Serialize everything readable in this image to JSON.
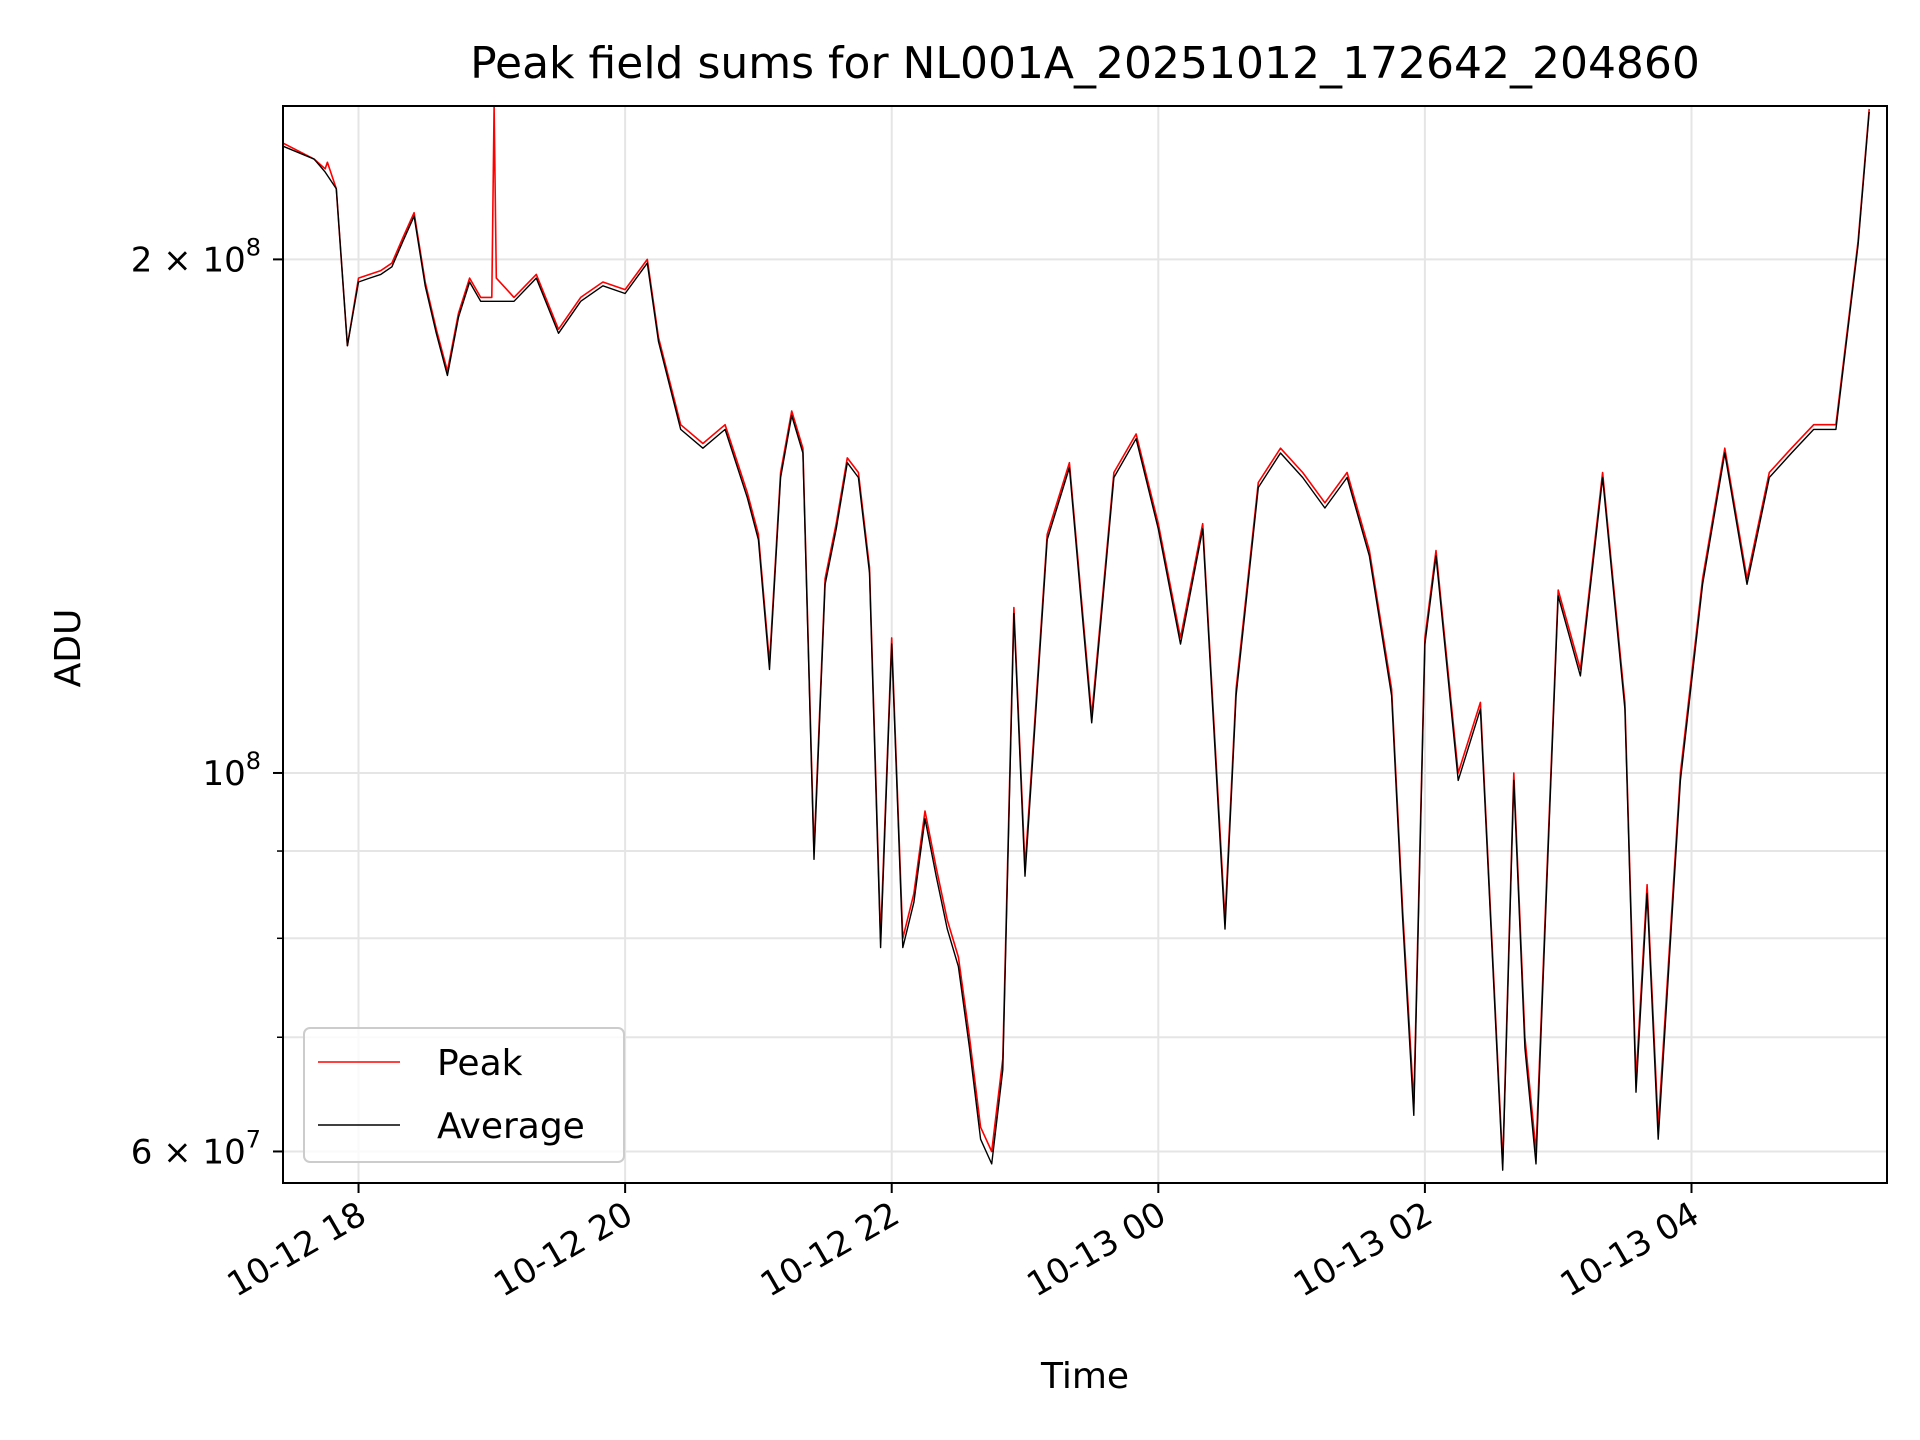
{
  "chart_data": {
    "type": "line",
    "title": "Peak field sums for NL001A_20251012_172642_204860",
    "xlabel": "Time",
    "ylabel": "ADU",
    "yscale": "log",
    "ylim": [
      57500000,
      246000000
    ],
    "xlim": [
      "2025-10-12T17:26:00",
      "2025-10-13T05:28:00"
    ],
    "grid": true,
    "legend": {
      "placement": "lower-left",
      "entries": [
        "Peak",
        "Average"
      ]
    },
    "x_ticks": [
      {
        "value": "2025-10-12T18:00:00",
        "label": "10-12 18"
      },
      {
        "value": "2025-10-12T20:00:00",
        "label": "10-12 20"
      },
      {
        "value": "2025-10-12T22:00:00",
        "label": "10-12 22"
      },
      {
        "value": "2025-10-13T00:00:00",
        "label": "10-13 00"
      },
      {
        "value": "2025-10-13T02:00:00",
        "label": "10-13 02"
      },
      {
        "value": "2025-10-13T04:00:00",
        "label": "10-13 04"
      }
    ],
    "y_major_ticks": [
      {
        "value": 60000000,
        "label": "6 × 10",
        "exp": "7"
      },
      {
        "value": 100000000,
        "label": "10",
        "exp": "8"
      },
      {
        "value": 200000000,
        "label": "2 × 10",
        "exp": "8"
      }
    ],
    "y_minor_ticks": [
      70000000,
      80000000,
      90000000
    ],
    "series": [
      {
        "name": "Peak",
        "color": "#ff0000",
        "x": [
          "2025-10-12T17:26:00",
          "2025-10-12T17:40:00",
          "2025-10-12T17:45:00",
          "2025-10-12T17:46:00",
          "2025-10-12T17:50:00",
          "2025-10-12T17:55:00",
          "2025-10-12T18:00:00",
          "2025-10-12T18:05:00",
          "2025-10-12T18:10:00",
          "2025-10-12T18:15:00",
          "2025-10-12T18:20:00",
          "2025-10-12T18:25:00",
          "2025-10-12T18:30:00",
          "2025-10-12T18:35:00",
          "2025-10-12T18:40:00",
          "2025-10-12T18:45:00",
          "2025-10-12T18:50:00",
          "2025-10-12T18:55:00",
          "2025-10-12T19:00:00",
          "2025-10-12T19:01:00",
          "2025-10-12T19:02:00",
          "2025-10-12T19:10:00",
          "2025-10-12T19:20:00",
          "2025-10-12T19:30:00",
          "2025-10-12T19:40:00",
          "2025-10-12T19:50:00",
          "2025-10-12T20:00:00",
          "2025-10-12T20:10:00",
          "2025-10-12T20:15:00",
          "2025-10-12T20:25:00",
          "2025-10-12T20:35:00",
          "2025-10-12T20:45:00",
          "2025-10-12T20:55:00",
          "2025-10-12T21:00:00",
          "2025-10-12T21:05:00",
          "2025-10-12T21:10:00",
          "2025-10-12T21:15:00",
          "2025-10-12T21:20:00",
          "2025-10-12T21:25:00",
          "2025-10-12T21:30:00",
          "2025-10-12T21:35:00",
          "2025-10-12T21:40:00",
          "2025-10-12T21:45:00",
          "2025-10-12T21:50:00",
          "2025-10-12T21:55:00",
          "2025-10-12T22:00:00",
          "2025-10-12T22:05:00",
          "2025-10-12T22:10:00",
          "2025-10-12T22:15:00",
          "2025-10-12T22:20:00",
          "2025-10-12T22:25:00",
          "2025-10-12T22:30:00",
          "2025-10-12T22:35:00",
          "2025-10-12T22:40:00",
          "2025-10-12T22:45:00",
          "2025-10-12T22:50:00",
          "2025-10-12T22:55:00",
          "2025-10-12T23:00:00",
          "2025-10-12T23:10:00",
          "2025-10-12T23:20:00",
          "2025-10-12T23:30:00",
          "2025-10-12T23:40:00",
          "2025-10-12T23:50:00",
          "2025-10-13T00:00:00",
          "2025-10-13T00:10:00",
          "2025-10-13T00:20:00",
          "2025-10-13T00:30:00",
          "2025-10-13T00:35:00",
          "2025-10-13T00:45:00",
          "2025-10-13T00:55:00",
          "2025-10-13T01:05:00",
          "2025-10-13T01:15:00",
          "2025-10-13T01:25:00",
          "2025-10-13T01:35:00",
          "2025-10-13T01:45:00",
          "2025-10-13T01:50:00",
          "2025-10-13T01:55:00",
          "2025-10-13T02:00:00",
          "2025-10-13T02:05:00",
          "2025-10-13T02:15:00",
          "2025-10-13T02:25:00",
          "2025-10-13T02:35:00",
          "2025-10-13T02:40:00",
          "2025-10-13T02:45:00",
          "2025-10-13T02:50:00",
          "2025-10-13T02:55:00",
          "2025-10-13T03:00:00",
          "2025-10-13T03:10:00",
          "2025-10-13T03:20:00",
          "2025-10-13T03:30:00",
          "2025-10-13T03:35:00",
          "2025-10-13T03:40:00",
          "2025-10-13T03:45:00",
          "2025-10-13T03:55:00",
          "2025-10-13T04:05:00",
          "2025-10-13T04:15:00",
          "2025-10-13T04:25:00",
          "2025-10-13T04:35:00",
          "2025-10-13T04:45:00",
          "2025-10-13T04:55:00",
          "2025-10-13T05:05:00",
          "2025-10-13T05:15:00",
          "2025-10-13T05:20:00"
        ],
        "values": [
          234000000,
          229000000,
          226000000,
          228000000,
          220000000,
          178000000,
          195000000,
          196000000,
          197000000,
          199000000,
          206000000,
          213000000,
          194000000,
          182000000,
          172000000,
          186000000,
          195000000,
          190000000,
          190000000,
          246000000,
          195000000,
          190000000,
          196000000,
          182000000,
          190000000,
          194000000,
          192000000,
          200000000,
          180000000,
          160000000,
          156000000,
          160000000,
          146000000,
          138000000,
          116000000,
          150000000,
          163000000,
          155000000,
          90000000,
          130000000,
          140000000,
          153000000,
          150000000,
          132000000,
          80000000,
          120000000,
          80000000,
          85000000,
          95000000,
          88000000,
          82000000,
          78000000,
          70000000,
          62000000,
          60000000,
          68000000,
          125000000,
          88000000,
          138000000,
          152000000,
          108000000,
          150000000,
          158000000,
          140000000,
          120000000,
          140000000,
          82000000,
          112000000,
          148000000,
          155000000,
          150000000,
          144000000,
          150000000,
          135000000,
          112000000,
          83000000,
          64000000,
          120000000,
          135000000,
          100000000,
          110000000,
          59000000,
          100000000,
          70000000,
          60000000,
          88000000,
          128000000,
          115000000,
          150000000,
          110000000,
          66000000,
          86000000,
          62000000,
          100000000,
          130000000,
          155000000,
          130000000,
          150000000,
          155000000,
          160000000,
          160000000,
          205000000,
          245000000
        ]
      },
      {
        "name": "Average",
        "color": "#000000",
        "x": [
          "2025-10-12T17:26:00",
          "2025-10-12T17:40:00",
          "2025-10-12T17:45:00",
          "2025-10-12T17:50:00",
          "2025-10-12T17:55:00",
          "2025-10-12T18:00:00",
          "2025-10-12T18:05:00",
          "2025-10-12T18:10:00",
          "2025-10-12T18:15:00",
          "2025-10-12T18:20:00",
          "2025-10-12T18:25:00",
          "2025-10-12T18:30:00",
          "2025-10-12T18:35:00",
          "2025-10-12T18:40:00",
          "2025-10-12T18:45:00",
          "2025-10-12T18:50:00",
          "2025-10-12T18:55:00",
          "2025-10-12T19:00:00",
          "2025-10-12T19:10:00",
          "2025-10-12T19:20:00",
          "2025-10-12T19:30:00",
          "2025-10-12T19:40:00",
          "2025-10-12T19:50:00",
          "2025-10-12T20:00:00",
          "2025-10-12T20:10:00",
          "2025-10-12T20:15:00",
          "2025-10-12T20:25:00",
          "2025-10-12T20:35:00",
          "2025-10-12T20:45:00",
          "2025-10-12T20:55:00",
          "2025-10-12T21:00:00",
          "2025-10-12T21:05:00",
          "2025-10-12T21:10:00",
          "2025-10-12T21:15:00",
          "2025-10-12T21:20:00",
          "2025-10-12T21:25:00",
          "2025-10-12T21:30:00",
          "2025-10-12T21:35:00",
          "2025-10-12T21:40:00",
          "2025-10-12T21:45:00",
          "2025-10-12T21:50:00",
          "2025-10-12T21:55:00",
          "2025-10-12T22:00:00",
          "2025-10-12T22:05:00",
          "2025-10-12T22:10:00",
          "2025-10-12T22:15:00",
          "2025-10-12T22:20:00",
          "2025-10-12T22:25:00",
          "2025-10-12T22:30:00",
          "2025-10-12T22:35:00",
          "2025-10-12T22:40:00",
          "2025-10-12T22:45:00",
          "2025-10-12T22:50:00",
          "2025-10-12T22:55:00",
          "2025-10-12T23:00:00",
          "2025-10-12T23:10:00",
          "2025-10-12T23:20:00",
          "2025-10-12T23:30:00",
          "2025-10-12T23:40:00",
          "2025-10-12T23:50:00",
          "2025-10-13T00:00:00",
          "2025-10-13T00:10:00",
          "2025-10-13T00:20:00",
          "2025-10-13T00:30:00",
          "2025-10-13T00:35:00",
          "2025-10-13T00:45:00",
          "2025-10-13T00:55:00",
          "2025-10-13T01:05:00",
          "2025-10-13T01:15:00",
          "2025-10-13T01:25:00",
          "2025-10-13T01:35:00",
          "2025-10-13T01:45:00",
          "2025-10-13T01:50:00",
          "2025-10-13T01:55:00",
          "2025-10-13T02:00:00",
          "2025-10-13T02:05:00",
          "2025-10-13T02:15:00",
          "2025-10-13T02:25:00",
          "2025-10-13T02:35:00",
          "2025-10-13T02:40:00",
          "2025-10-13T02:45:00",
          "2025-10-13T02:50:00",
          "2025-10-13T02:55:00",
          "2025-10-13T03:00:00",
          "2025-10-13T03:10:00",
          "2025-10-13T03:20:00",
          "2025-10-13T03:30:00",
          "2025-10-13T03:35:00",
          "2025-10-13T03:40:00",
          "2025-10-13T03:45:00",
          "2025-10-13T03:55:00",
          "2025-10-13T04:05:00",
          "2025-10-13T04:15:00",
          "2025-10-13T04:25:00",
          "2025-10-13T04:35:00",
          "2025-10-13T04:45:00",
          "2025-10-13T04:55:00",
          "2025-10-13T05:05:00",
          "2025-10-13T05:15:00",
          "2025-10-13T05:20:00"
        ],
        "values": [
          233000000,
          229000000,
          225000000,
          220000000,
          178000000,
          194000000,
          195000000,
          196000000,
          198000000,
          205000000,
          212000000,
          193000000,
          181000000,
          171000000,
          185000000,
          194000000,
          189000000,
          189000000,
          189000000,
          195000000,
          181000000,
          189000000,
          193000000,
          191000000,
          199000000,
          179000000,
          159000000,
          155000000,
          159000000,
          145000000,
          137000000,
          115000000,
          149000000,
          162000000,
          154000000,
          89000000,
          129000000,
          139000000,
          152000000,
          149000000,
          131000000,
          79000000,
          119000000,
          79000000,
          84000000,
          94000000,
          87000000,
          81000000,
          77000000,
          69000000,
          61000000,
          59000000,
          67000000,
          124000000,
          87000000,
          137000000,
          151000000,
          107000000,
          149000000,
          157000000,
          139000000,
          119000000,
          139000000,
          81000000,
          111000000,
          147000000,
          154000000,
          149000000,
          143000000,
          149000000,
          134000000,
          111000000,
          82000000,
          63000000,
          119000000,
          134000000,
          99000000,
          109000000,
          58500000,
          99000000,
          69000000,
          59000000,
          87000000,
          127000000,
          114000000,
          149000000,
          109000000,
          65000000,
          85000000,
          61000000,
          99000000,
          129000000,
          154000000,
          129000000,
          149000000,
          154000000,
          159000000,
          159000000,
          204000000,
          244000000
        ]
      }
    ]
  }
}
